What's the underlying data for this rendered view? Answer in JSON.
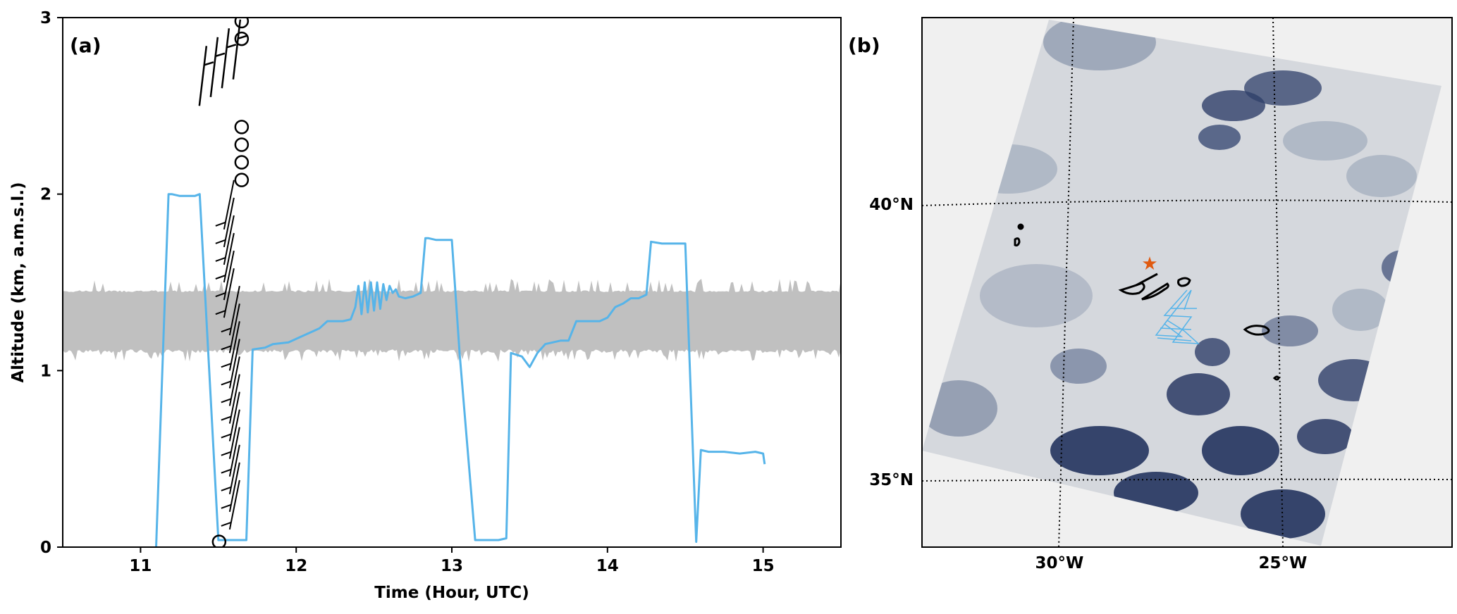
{
  "chart_data": [
    {
      "panel": "(a)",
      "type": "line",
      "xlabel": "Time (Hour, UTC)",
      "ylabel": "Altitude (km, a.m.s.l.)",
      "xlim": [
        10.5,
        15.5
      ],
      "ylim": [
        0,
        3
      ],
      "xticks": [
        11,
        12,
        13,
        14,
        15
      ],
      "yticks": [
        0,
        1,
        2,
        3
      ],
      "colors": {
        "flight": "#56b4e9",
        "band": "#c0c0c0",
        "barbs": "#000000"
      },
      "band": {
        "x": [
          10.5,
          15.5
        ],
        "y_low": 1.12,
        "y_high": 1.45,
        "y_low_min": 1.05,
        "y_high_max": 1.52
      },
      "series": [
        {
          "x": [
            11.1,
            11.18,
            11.2,
            11.25,
            11.35,
            11.38,
            11.5,
            11.52,
            11.6,
            11.68,
            11.72,
            11.8,
            11.85,
            11.95,
            12.0,
            12.05,
            12.1,
            12.15,
            12.2,
            12.3,
            12.35,
            12.38,
            12.4,
            12.42,
            12.44,
            12.46,
            12.48,
            12.5,
            12.52,
            12.54,
            12.56,
            12.58,
            12.6,
            12.62,
            12.64,
            12.66,
            12.7,
            12.75,
            12.8,
            12.83,
            12.85,
            12.9,
            13.0,
            13.05,
            13.15,
            13.2,
            13.3,
            13.35,
            13.38,
            13.45,
            13.5,
            13.55,
            13.6,
            13.7,
            13.75,
            13.8,
            13.85,
            13.95,
            14.0,
            14.05,
            14.1,
            14.15,
            14.2,
            14.25,
            14.28,
            14.35,
            14.45,
            14.5,
            14.57,
            14.6,
            14.65,
            14.75,
            14.85,
            14.95,
            15.0,
            15.01
          ],
          "y": [
            0.0,
            2.0,
            2.0,
            1.99,
            1.99,
            2.0,
            0.04,
            0.04,
            0.04,
            0.04,
            1.12,
            1.13,
            1.15,
            1.16,
            1.18,
            1.2,
            1.22,
            1.24,
            1.28,
            1.28,
            1.29,
            1.36,
            1.48,
            1.32,
            1.5,
            1.33,
            1.5,
            1.34,
            1.5,
            1.35,
            1.49,
            1.4,
            1.48,
            1.44,
            1.46,
            1.42,
            1.41,
            1.42,
            1.44,
            1.75,
            1.75,
            1.74,
            1.74,
            1.1,
            0.04,
            0.04,
            0.04,
            0.05,
            1.1,
            1.08,
            1.02,
            1.1,
            1.15,
            1.17,
            1.17,
            1.28,
            1.28,
            1.28,
            1.3,
            1.36,
            1.38,
            1.41,
            1.41,
            1.43,
            1.73,
            1.72,
            1.72,
            1.72,
            0.03,
            0.55,
            0.54,
            0.54,
            0.53,
            0.54,
            0.53,
            0.47
          ]
        }
      ],
      "barb_column": {
        "x": 11.55,
        "calm_altitudes": [
          0.03,
          2.08,
          2.18,
          2.28,
          2.38,
          2.88,
          2.98
        ],
        "upper_barb_altitudes": [
          2.5,
          2.55,
          2.6,
          2.65
        ],
        "lower_barb_altitudes": [
          0.1,
          0.2,
          0.3,
          0.4,
          0.5,
          0.6,
          0.7,
          0.8,
          0.9,
          1.0,
          1.1,
          1.2,
          1.3,
          1.4,
          1.5,
          1.6,
          1.7,
          1.8
        ]
      }
    },
    {
      "panel": "(b)",
      "type": "map",
      "lat_ticks": [
        "35°N",
        "40°N"
      ],
      "lon_ticks": [
        "30°W",
        "25°W"
      ],
      "colors": {
        "background": "#f0f0f0",
        "cloud": "#d5d8dd",
        "ocean": "#25355f",
        "contour": "#000000",
        "track": "#56b4e9",
        "star": "#e05a10"
      },
      "marker": "star",
      "graticule": "dotted"
    }
  ]
}
